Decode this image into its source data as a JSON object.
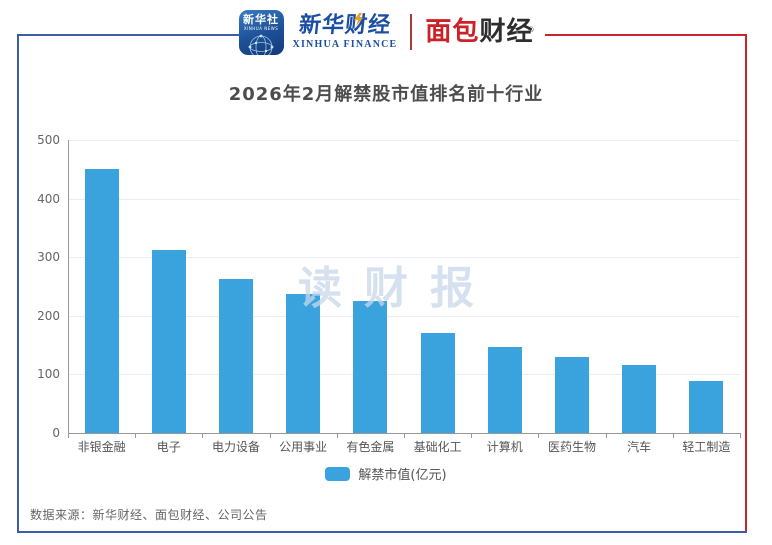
{
  "header": {
    "xinhua_badge": {
      "line1": "新华社",
      "line2": "XINHUA NEWS"
    },
    "xinhua_finance": {
      "cn": "新华财经",
      "en": "XINHUA FINANCE"
    },
    "bread_finance": {
      "cn_red": "面包",
      "cn_dark": "财经",
      "reg": "®"
    }
  },
  "title": "2026年2月解禁股市值排名前十行业",
  "watermark": "读财报",
  "legend": {
    "label": "解禁市值(亿元)"
  },
  "source": "数据来源：新华财经、面包财经、公司公告",
  "colors": {
    "bar": "#3aa2dc",
    "frame_blue": "#3b5fa5",
    "frame_red": "#c9252b",
    "title_text": "#4d4d4d",
    "axis_text": "#666666",
    "gridline": "#e9edf4",
    "axis_line": "#999999",
    "watermark": "#c9d8eb",
    "xinhua_blue": "#1b4fa3",
    "bread_red": "#cc2127"
  },
  "chart_data": {
    "type": "bar",
    "title": "2026年2月解禁股市值排名前十行业",
    "categories": [
      "非银金融",
      "电子",
      "电力设备",
      "公用事业",
      "有色金属",
      "基础化工",
      "计算机",
      "医药生物",
      "汽车",
      "轻工制造"
    ],
    "values": [
      450,
      313,
      262,
      238,
      225,
      171,
      146,
      129,
      116,
      89
    ],
    "series_name": "解禁市值(亿元)",
    "xlabel": "",
    "ylabel": "",
    "ylim": [
      0,
      500
    ],
    "yticks": [
      0,
      100,
      200,
      300,
      400,
      500
    ],
    "grid": true,
    "legend_position": "bottom"
  }
}
